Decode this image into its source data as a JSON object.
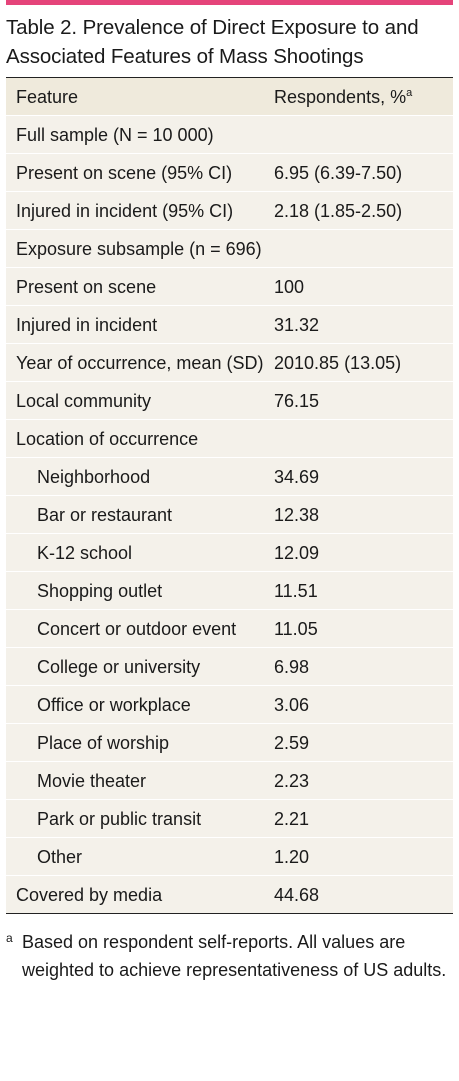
{
  "title": "Table 2. Prevalence of Direct Exposure to and Associated Features of Mass Shootings",
  "header": {
    "feature": "Feature",
    "respondents": "Respondents, %",
    "sup": "a"
  },
  "sections": {
    "full": "Full sample (N = 10 000)",
    "exposure": "Exposure subsample (n = 696)"
  },
  "rows_full": [
    {
      "feature": "Present on scene (95% CI)",
      "value": "6.95 (6.39-7.50)"
    },
    {
      "feature": "Injured in incident (95% CI)",
      "value": "2.18 (1.85-2.50)"
    }
  ],
  "rows_exposure": [
    {
      "feature": "Present on scene",
      "value": "100"
    },
    {
      "feature": "Injured in incident",
      "value": "31.32"
    },
    {
      "feature": "Year of occurrence, mean (SD)",
      "value": "2010.85 (13.05)"
    },
    {
      "feature": "Local community",
      "value": "76.15"
    },
    {
      "feature": "Location of occurrence",
      "value": ""
    },
    {
      "feature": "Neighborhood",
      "value": "34.69"
    },
    {
      "feature": "Bar or restaurant",
      "value": "12.38"
    },
    {
      "feature": "K-12 school",
      "value": "12.09"
    },
    {
      "feature": "Shopping outlet",
      "value": "11.51"
    },
    {
      "feature": "Concert or outdoor event",
      "value": "11.05"
    },
    {
      "feature": "College or university",
      "value": "6.98"
    },
    {
      "feature": "Office or workplace",
      "value": "3.06"
    },
    {
      "feature": "Place of worship",
      "value": "2.59"
    },
    {
      "feature": "Movie theater",
      "value": "2.23"
    },
    {
      "feature": "Park or public transit",
      "value": "2.21"
    },
    {
      "feature": "Other",
      "value": "1.20"
    },
    {
      "feature": "Covered by media",
      "value": "44.68"
    }
  ],
  "footnote": {
    "mark": "a",
    "text": "Based on respondent self-reports. All values are weighted to achieve representativeness of US adults."
  },
  "colors": {
    "accent": "#e5447a",
    "table_bg": "#f4f1ea"
  }
}
